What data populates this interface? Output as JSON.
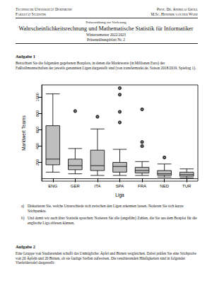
{
  "header": {
    "left": [
      "Technische Universität Dortmund",
      "Fakultät Statistik"
    ],
    "right": [
      "Prof. Dr. Andreas Groll",
      "M.Sc. Hendrik van der Wurp"
    ]
  },
  "title": {
    "kicker": "Präsenzübung zur Vorlesung",
    "course": "Wahrscheinlichkeitsrechnung und Mathematische Statistik für Informatiker",
    "semester": "Wintersemester 2022/2023",
    "sheet": "Präsenzübungsblatt Nr. 2"
  },
  "aufgabe1": {
    "heading": "Aufgabe 1",
    "text": "Betrachten Sie die folgenden gegebenen Boxplots, in denen die Marktwerte (in Millionen Euro) der Fußballmannschaften der jeweils genannten Ligen dargestellt sind (von transfermarkt.de, Saison 2018/2019, Spieltag 1).",
    "items": [
      {
        "label": "a)",
        "text": "Diskutieren Sie, welche Unterschiede sich zwischen den Ligen erkennen lassen. Notieren Sie sich kurze Stichpunkte."
      },
      {
        "label": "b)",
        "text": "Und damit wir auch über Statistik sprechen: Notieren Sie alle (ungefähr) Zahlen, die Sie aus dem Boxplot für die englische Liga ablesen können."
      }
    ]
  },
  "chart_data": {
    "type": "boxplot",
    "x_label": "Liga",
    "y_label": "Marktwert Teams",
    "categories": [
      "ENG",
      "GER",
      "ITA",
      "SPA",
      "FRA",
      "NED",
      "TUR"
    ],
    "boxes": [
      [
        80,
        170,
        240,
        650,
        1040
      ],
      [
        60,
        110,
        160,
        240,
        370
      ],
      [
        40,
        100,
        160,
        350,
        610
      ],
      [
        40,
        80,
        150,
        200,
        360
      ],
      [
        40,
        70,
        100,
        140,
        210
      ],
      [
        20,
        40,
        60,
        100,
        180
      ],
      [
        10,
        30,
        50,
        80,
        120
      ]
    ],
    "outliers": [
      [],
      [
        830
      ],
      [
        760
      ],
      [
        1110,
        1030,
        820,
        690
      ],
      [
        850,
        450,
        400
      ],
      [
        260
      ],
      []
    ],
    "color": "#bebebe",
    "ylim": [
      -30,
      1150
    ],
    "yticks": [
      200,
      400,
      600,
      800,
      1000
    ],
    "grid": false
  },
  "aufgabe2": {
    "heading": "Aufgabe 2",
    "text": "Eine Gruppe von Studierenden schafft das Unmögliche: Äpfel und Birnen vergleichen. Dabei prüfen Sie eine Stichprobe von 20 Äpfeln und 20 Birnen, ob sie faulige Stellen aufweisen. Die resultierenden Häufigkeiten sind in folgender Vierfeldertafel dargestellt:"
  }
}
